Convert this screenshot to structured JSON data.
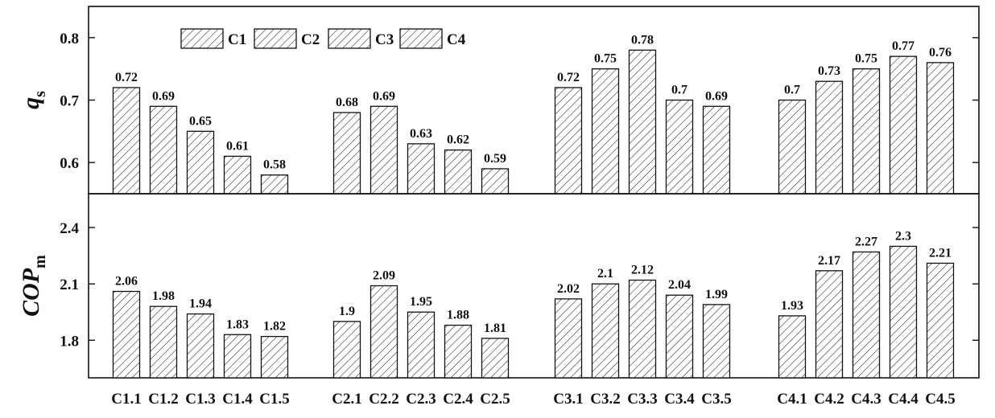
{
  "chart_data": [
    {
      "type": "bar",
      "panel": "top",
      "ylabel": "q",
      "ylabel_subscript": "s",
      "ylim": [
        0.55,
        0.85
      ],
      "yticks": [
        "0.6",
        "0.7",
        "0.8"
      ],
      "ytick_values": [
        0.6,
        0.7,
        0.8
      ],
      "legend": {
        "placement": "top-left",
        "entries": [
          "C1",
          "C2",
          "C3",
          "C4"
        ]
      },
      "groups": [
        {
          "name": "C1",
          "categories": [
            "C1.1",
            "C1.2",
            "C1.3",
            "C1.4",
            "C1.5"
          ],
          "values": [
            0.72,
            0.69,
            0.65,
            0.61,
            0.58
          ],
          "labels": [
            "0.72",
            "0.69",
            "0.65",
            "0.61",
            "0.58"
          ]
        },
        {
          "name": "C2",
          "categories": [
            "C2.1",
            "C2.2",
            "C2.3",
            "C2.4",
            "C2.5"
          ],
          "values": [
            0.68,
            0.69,
            0.63,
            0.62,
            0.59
          ],
          "labels": [
            "0.68",
            "0.69",
            "0.63",
            "0.62",
            "0.59"
          ]
        },
        {
          "name": "C3",
          "categories": [
            "C3.1",
            "C3.2",
            "C3.3",
            "C3.4",
            "C3.5"
          ],
          "values": [
            0.72,
            0.75,
            0.78,
            0.7,
            0.69
          ],
          "labels": [
            "0.72",
            "0.75",
            "0.78",
            "0.7",
            "0.69"
          ]
        },
        {
          "name": "C4",
          "categories": [
            "C4.1",
            "C4.2",
            "C4.3",
            "C4.4",
            "C4.5"
          ],
          "values": [
            0.7,
            0.73,
            0.75,
            0.77,
            0.76
          ],
          "labels": [
            "0.7",
            "0.73",
            "0.75",
            "0.77",
            "0.76"
          ]
        }
      ]
    },
    {
      "type": "bar",
      "panel": "bottom",
      "ylabel": "COP",
      "ylabel_subscript": "m",
      "ylim": [
        1.6,
        2.58
      ],
      "yticks": [
        "1.8",
        "2.1",
        "2.4"
      ],
      "ytick_values": [
        1.8,
        2.1,
        2.4
      ],
      "groups": [
        {
          "name": "C1",
          "categories": [
            "C1.1",
            "C1.2",
            "C1.3",
            "C1.4",
            "C1.5"
          ],
          "values": [
            2.06,
            1.98,
            1.94,
            1.83,
            1.82
          ],
          "labels": [
            "2.06",
            "1.98",
            "1.94",
            "1.83",
            "1.82"
          ]
        },
        {
          "name": "C2",
          "categories": [
            "C2.1",
            "C2.2",
            "C2.3",
            "C2.4",
            "C2.5"
          ],
          "values": [
            1.9,
            2.09,
            1.95,
            1.88,
            1.81
          ],
          "labels": [
            "1.9",
            "2.09",
            "1.95",
            "1.88",
            "1.81"
          ]
        },
        {
          "name": "C3",
          "categories": [
            "C3.1",
            "C3.2",
            "C3.3",
            "C3.4",
            "C3.5"
          ],
          "values": [
            2.02,
            2.1,
            2.12,
            2.04,
            1.99
          ],
          "labels": [
            "2.02",
            "2.1",
            "2.12",
            "2.04",
            "1.99"
          ]
        },
        {
          "name": "C4",
          "categories": [
            "C4.1",
            "C4.2",
            "C4.3",
            "C4.4",
            "C4.5"
          ],
          "values": [
            1.93,
            2.17,
            2.27,
            2.3,
            2.21
          ],
          "labels": [
            "1.93",
            "2.17",
            "2.27",
            "2.3",
            "2.21"
          ]
        }
      ]
    }
  ],
  "style": {
    "bar_fill": "hatched",
    "stroke_color": "#111111",
    "background": "#ffffff"
  }
}
